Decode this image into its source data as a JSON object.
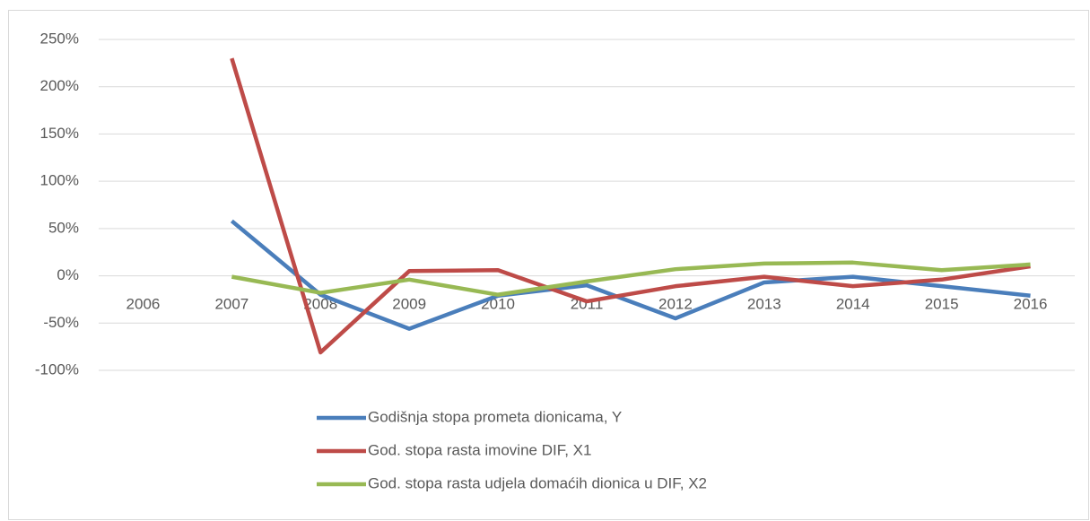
{
  "chart_data": {
    "type": "line",
    "categories": [
      "2006",
      "2007",
      "2008",
      "2009",
      "2010",
      "2011",
      "2012",
      "2013",
      "2014",
      "2015",
      "2016"
    ],
    "series": [
      {
        "name": "Godišnja stopa prometa dionicama, Y",
        "color": "#4a7ebb",
        "values": [
          null,
          58,
          -20,
          -56,
          -21,
          -10,
          -45,
          -7,
          -1,
          -11,
          -21
        ]
      },
      {
        "name": "God. stopa rasta imovine DIF, X1",
        "color": "#be4b48",
        "values": [
          null,
          230,
          -81,
          5,
          6,
          -27,
          -11,
          -1,
          -11,
          -4,
          10
        ]
      },
      {
        "name": "God. stopa rasta udjela domaćih dionica u DIF, X2",
        "color": "#98b954",
        "values": [
          null,
          -1,
          -18,
          -4,
          -20,
          -6,
          7,
          13,
          14,
          6,
          12
        ]
      }
    ],
    "ylim": [
      -100,
      250
    ],
    "yticks": [
      {
        "value": -100,
        "label": "-100%"
      },
      {
        "value": -50,
        "label": "-50%"
      },
      {
        "value": 0,
        "label": "0%"
      },
      {
        "value": 50,
        "label": "50%"
      },
      {
        "value": 100,
        "label": "100%"
      },
      {
        "value": 150,
        "label": "150%"
      },
      {
        "value": 200,
        "label": "200%"
      },
      {
        "value": 250,
        "label": "250%"
      }
    ],
    "grid": true
  }
}
